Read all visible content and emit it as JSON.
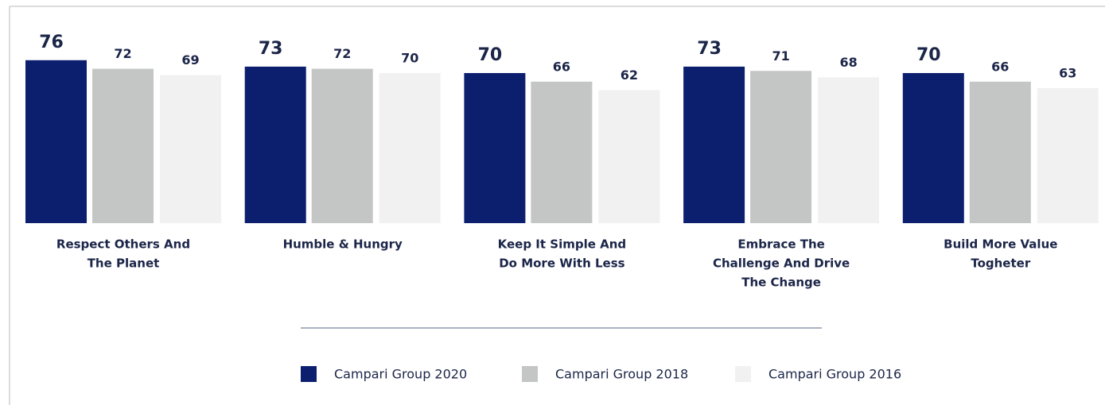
{
  "chart_data": {
    "type": "bar",
    "categories": [
      [
        "Respect Others And",
        "The Planet"
      ],
      [
        "Humble & Hungry"
      ],
      [
        "Keep It Simple And",
        "Do More With Less"
      ],
      [
        "Embrace The",
        "Challenge And Drive",
        "The Change"
      ],
      [
        "Build More Value",
        "Togheter"
      ]
    ],
    "series": [
      {
        "name": "Campari Group 2020",
        "color": "#0c1f6f",
        "values": [
          76,
          73,
          70,
          73,
          70
        ]
      },
      {
        "name": "Campari Group 2018",
        "color": "#c4c5c5",
        "values": [
          72,
          72,
          66,
          71,
          66
        ]
      },
      {
        "name": "Campari Group 2016",
        "color": "#f1f1f1",
        "values": [
          69,
          70,
          62,
          68,
          63
        ]
      }
    ],
    "ylim": [
      0,
      80
    ]
  }
}
